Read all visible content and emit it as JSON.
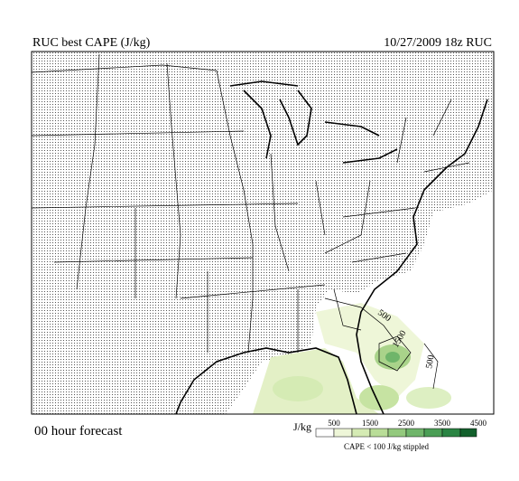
{
  "header": {
    "title": "RUC best CAPE (J/kg)",
    "valid_time": "10/27/2009  18z  RUC"
  },
  "footer": {
    "forecast": "00 hour forecast"
  },
  "legend": {
    "unit": "J/kg",
    "ticks": [
      "500",
      "1500",
      "2500",
      "3500",
      "4500"
    ],
    "note": "CAPE < 100 J/kg stippled"
  },
  "map": {
    "contour_labels": [
      "500",
      "1500",
      "500"
    ]
  }
}
